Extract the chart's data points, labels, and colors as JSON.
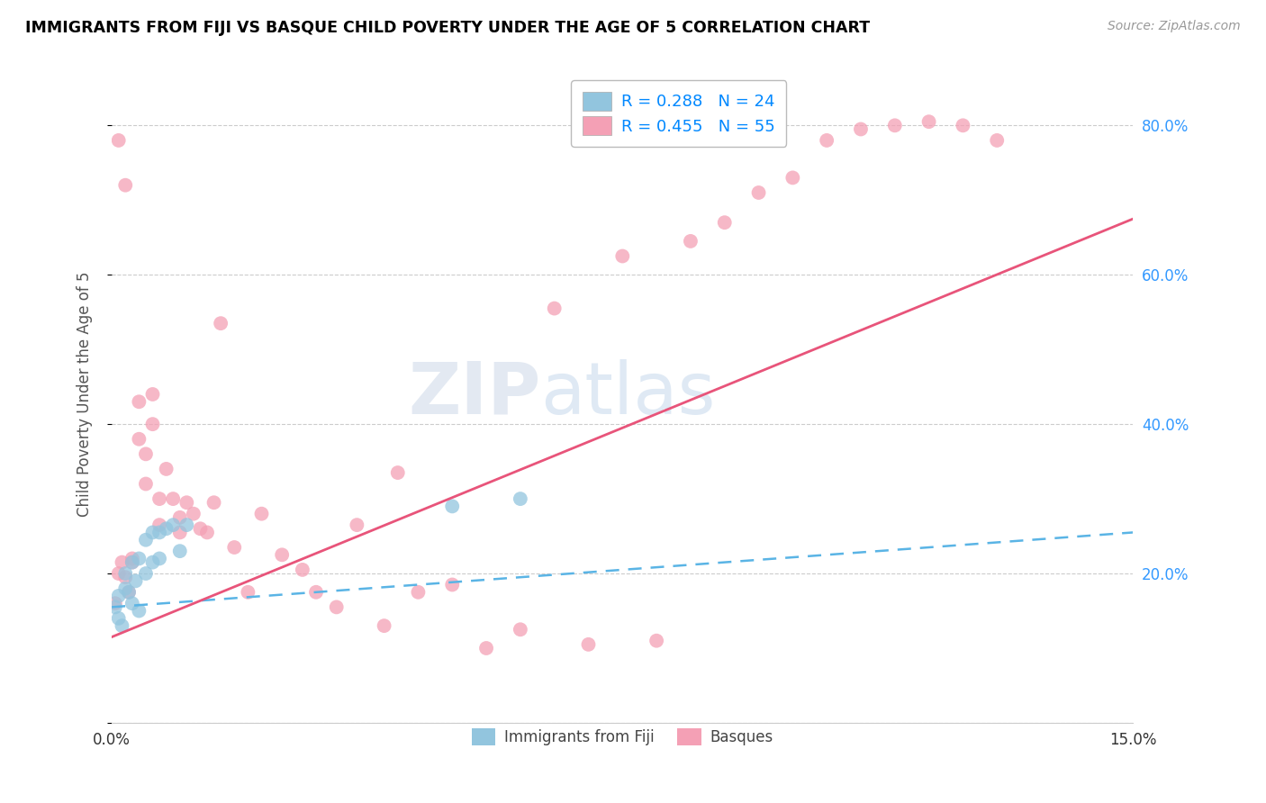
{
  "title": "IMMIGRANTS FROM FIJI VS BASQUE CHILD POVERTY UNDER THE AGE OF 5 CORRELATION CHART",
  "source": "Source: ZipAtlas.com",
  "ylabel": "Child Poverty Under the Age of 5",
  "xlim": [
    0.0,
    0.15
  ],
  "ylim": [
    0.0,
    0.88
  ],
  "yticks": [
    0.0,
    0.2,
    0.4,
    0.6,
    0.8
  ],
  "right_yticklabels": [
    "",
    "20.0%",
    "40.0%",
    "60.0%",
    "80.0%"
  ],
  "xticks": [
    0.0,
    0.03,
    0.06,
    0.09,
    0.12,
    0.15
  ],
  "legend_label1": "R = 0.288   N = 24",
  "legend_label2": "R = 0.455   N = 55",
  "legend_label_fiji": "Immigrants from Fiji",
  "legend_label_basque": "Basques",
  "color_fiji": "#92c5de",
  "color_basque": "#f4a0b5",
  "color_trendline_fiji": "#5ab4e5",
  "color_trendline_basque": "#e8547a",
  "watermark_zip": "ZIP",
  "watermark_atlas": "atlas",
  "fiji_x": [
    0.0005,
    0.001,
    0.001,
    0.0015,
    0.002,
    0.002,
    0.0025,
    0.003,
    0.003,
    0.0035,
    0.004,
    0.004,
    0.005,
    0.005,
    0.006,
    0.006,
    0.007,
    0.007,
    0.008,
    0.009,
    0.01,
    0.011,
    0.05,
    0.06
  ],
  "fiji_y": [
    0.155,
    0.14,
    0.17,
    0.13,
    0.18,
    0.2,
    0.175,
    0.16,
    0.215,
    0.19,
    0.15,
    0.22,
    0.2,
    0.245,
    0.215,
    0.255,
    0.22,
    0.255,
    0.26,
    0.265,
    0.23,
    0.265,
    0.29,
    0.3
  ],
  "basque_x": [
    0.0005,
    0.001,
    0.001,
    0.0015,
    0.002,
    0.002,
    0.0025,
    0.003,
    0.003,
    0.004,
    0.004,
    0.005,
    0.005,
    0.006,
    0.006,
    0.007,
    0.007,
    0.008,
    0.009,
    0.01,
    0.01,
    0.011,
    0.012,
    0.013,
    0.014,
    0.015,
    0.016,
    0.018,
    0.02,
    0.022,
    0.025,
    0.028,
    0.03,
    0.033,
    0.036,
    0.04,
    0.042,
    0.045,
    0.05,
    0.055,
    0.06,
    0.065,
    0.07,
    0.075,
    0.08,
    0.085,
    0.09,
    0.095,
    0.1,
    0.105,
    0.11,
    0.115,
    0.12,
    0.125,
    0.13
  ],
  "basque_y": [
    0.16,
    0.2,
    0.78,
    0.215,
    0.72,
    0.195,
    0.175,
    0.22,
    0.215,
    0.43,
    0.38,
    0.36,
    0.32,
    0.44,
    0.4,
    0.3,
    0.265,
    0.34,
    0.3,
    0.275,
    0.255,
    0.295,
    0.28,
    0.26,
    0.255,
    0.295,
    0.535,
    0.235,
    0.175,
    0.28,
    0.225,
    0.205,
    0.175,
    0.155,
    0.265,
    0.13,
    0.335,
    0.175,
    0.185,
    0.1,
    0.125,
    0.555,
    0.105,
    0.625,
    0.11,
    0.645,
    0.67,
    0.71,
    0.73,
    0.78,
    0.795,
    0.8,
    0.805,
    0.8,
    0.78
  ],
  "fiji_trend_x0": 0.0,
  "fiji_trend_y0": 0.155,
  "fiji_trend_x1": 0.15,
  "fiji_trend_y1": 0.255,
  "basque_trend_x0": 0.0,
  "basque_trend_y0": 0.115,
  "basque_trend_x1": 0.15,
  "basque_trend_y1": 0.675
}
